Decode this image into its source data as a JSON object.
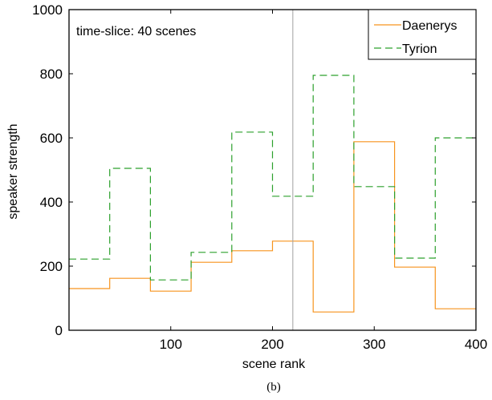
{
  "chart_data": {
    "type": "line",
    "xlabel": "scene rank",
    "ylabel": "speaker strength",
    "xlim": [
      0,
      400
    ],
    "ylim": [
      0,
      1000
    ],
    "xticks": [
      100,
      200,
      300,
      400
    ],
    "xtick_labels": [
      "100",
      "200",
      "300",
      "400"
    ],
    "yticks": [
      0,
      200,
      400,
      600,
      800,
      1000
    ],
    "ytick_labels": [
      "0",
      "200",
      "400",
      "600",
      "800",
      "1000"
    ],
    "grid": false,
    "legend_position": "top-right",
    "annotation": "time-slice: 40 scenes",
    "vertical_marker_x": 220,
    "caption": "(b)",
    "series": [
      {
        "name": "Daenerys",
        "style": "solid",
        "color": "#F7941D",
        "x": [
          0,
          40,
          80,
          120,
          160,
          200,
          240,
          280,
          320,
          360,
          400
        ],
        "values": [
          130,
          162,
          122,
          212,
          248,
          278,
          57,
          588,
          197,
          67,
          67
        ]
      },
      {
        "name": "Tyrion",
        "style": "dashed",
        "color": "#2CA02C",
        "x": [
          0,
          40,
          80,
          120,
          160,
          200,
          240,
          280,
          320,
          360,
          400
        ],
        "values": [
          222,
          505,
          157,
          243,
          618,
          418,
          795,
          448,
          225,
          600,
          600
        ]
      }
    ]
  }
}
